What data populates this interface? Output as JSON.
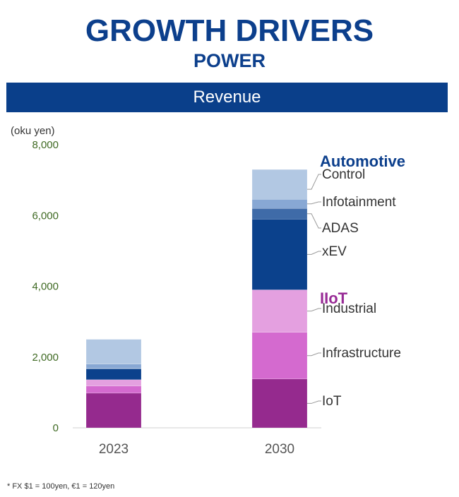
{
  "header": {
    "title": "GROWTH DRIVERS",
    "subtitle": "POWER",
    "banner": "Revenue"
  },
  "footnote": "* FX $1 = 100yen, €1 = 120yen",
  "chart_data": {
    "type": "bar",
    "stacked": true,
    "title": "Revenue",
    "ylabel": "(oku yen)",
    "xlabel": "",
    "ylim": [
      0,
      8000
    ],
    "yticks": [
      0,
      2000,
      4000,
      6000,
      8000
    ],
    "ytick_labels": [
      "0",
      "2,000",
      "4,000",
      "6,000",
      "8,000"
    ],
    "categories": [
      "2023",
      "2030"
    ],
    "grid": false,
    "legend_placement": "right (direct labels on 2030 bar)",
    "groups": [
      {
        "name": "Automotive",
        "color": "#0c3f8c",
        "series": [
          "Control",
          "Infotainment",
          "ADAS",
          "xEV"
        ]
      },
      {
        "name": "IIoT",
        "color": "#982b96",
        "series": [
          "Industrial",
          "Infrastructure",
          "IoT"
        ]
      }
    ],
    "series": [
      {
        "name": "IoT",
        "color": "#952a8e",
        "values": [
          980,
          1380
        ]
      },
      {
        "name": "Infrastructure",
        "color": "#d46acf",
        "values": [
          200,
          1320
        ]
      },
      {
        "name": "Industrial",
        "color": "#e4a0e0",
        "values": [
          180,
          1200
        ]
      },
      {
        "name": "xEV",
        "color": "#0b418c",
        "values": [
          300,
          2000
        ]
      },
      {
        "name": "ADAS",
        "color": "#3f6ba8",
        "values": [
          20,
          300
        ]
      },
      {
        "name": "Infotainment",
        "color": "#88a8d4",
        "values": [
          120,
          260
        ]
      },
      {
        "name": "Control",
        "color": "#b2c8e3",
        "values": [
          700,
          840
        ]
      }
    ],
    "totals_approx": [
      2500,
      7300
    ]
  }
}
